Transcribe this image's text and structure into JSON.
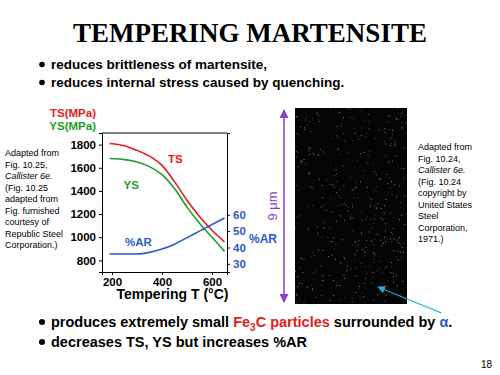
{
  "slide": {
    "title": "TEMPERING MARTENSITE",
    "bullets_top": [
      "reduces brittleness of martensite,",
      "reduces internal stress caused by quenching."
    ],
    "bullets_bottom": [
      [
        "produces extremely small ",
        "Fe",
        "3",
        "C particles",
        " surrounded by ",
        "α",
        "."
      ],
      [
        "decreases TS, YS but increases %AR"
      ]
    ],
    "caption_left": [
      "Adapted from",
      "Fig. 10.25,",
      "Callister 6e.",
      "(Fig. 10.25",
      "adapted from",
      "Fig. furnished",
      "courtesy of",
      "Republic Steel",
      "Corporation.)"
    ],
    "caption_right": [
      "Adapted from",
      "Fig. 10.24,",
      "Callister 6e.",
      "(Fig. 10.24",
      "copyright by",
      "United States",
      "Steel",
      "Corporation,",
      "1971.)"
    ],
    "scale_bar": "9 μm",
    "page": "18"
  },
  "chart_data": {
    "type": "line",
    "xlabel": "Tempering T (°C)",
    "ylabel": [
      "TS(MPa)",
      "YS(MPa)"
    ],
    "y2label": "%AR",
    "x": [
      190,
      250,
      300,
      350,
      400,
      450,
      500,
      550,
      600,
      650
    ],
    "xlim": [
      160,
      660
    ],
    "xticks": [
      200,
      400,
      600
    ],
    "ylim": [
      700,
      1900
    ],
    "yticks": [
      800,
      1000,
      1200,
      1400,
      1600,
      1800
    ],
    "y2lim": [
      25,
      110
    ],
    "y2ticks": [
      30,
      40,
      50,
      60
    ],
    "grid": false,
    "series": [
      {
        "name": "TS",
        "color": "#e0201b",
        "values": [
          1810,
          1790,
          1750,
          1700,
          1620,
          1480,
          1320,
          1180,
          1060,
          960
        ]
      },
      {
        "name": "YS",
        "color": "#1f9e2a",
        "values": [
          1680,
          1670,
          1650,
          1610,
          1540,
          1420,
          1260,
          1120,
          1000,
          880
        ]
      },
      {
        "name": "%AR",
        "color": "#2a5cc8",
        "axis": "y2",
        "values": [
          36,
          36,
          36,
          37,
          39,
          42,
          46,
          50,
          54,
          58
        ]
      }
    ]
  }
}
